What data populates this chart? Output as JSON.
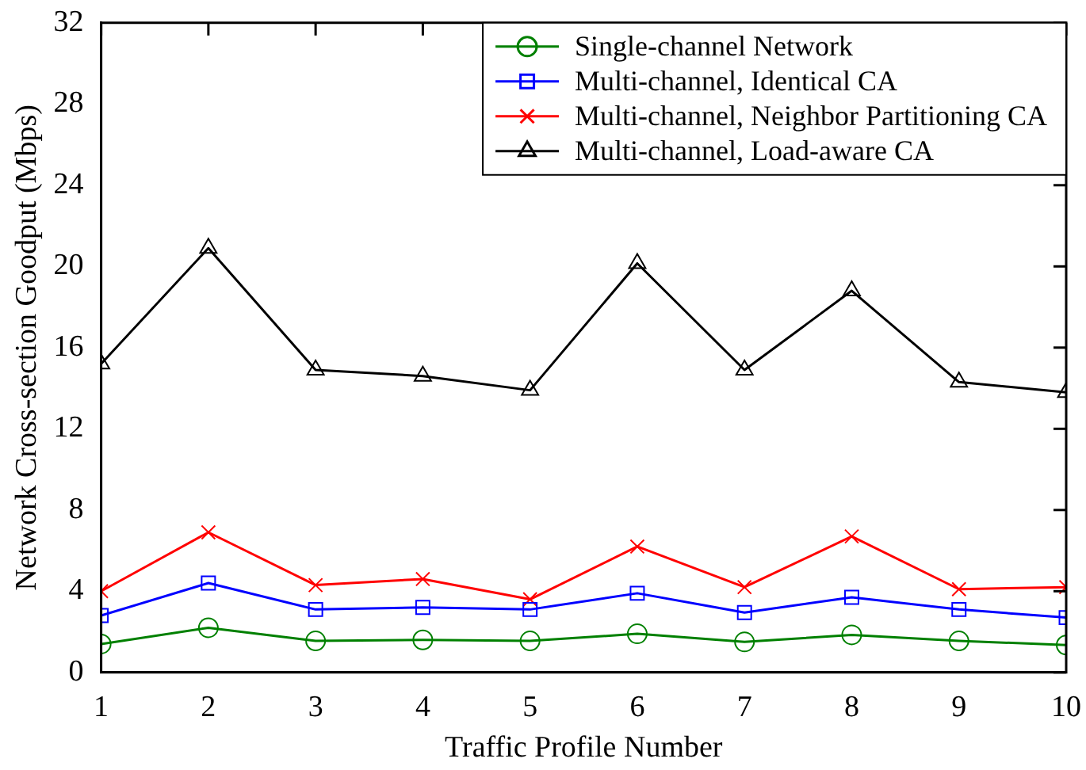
{
  "chart_data": {
    "type": "line",
    "xlabel": "Traffic Profile Number",
    "ylabel": "Network Cross-section Goodput (Mbps)",
    "x": [
      1,
      2,
      3,
      4,
      5,
      6,
      7,
      8,
      9,
      10
    ],
    "xlim": [
      1,
      10
    ],
    "xticks": [
      1,
      2,
      3,
      4,
      5,
      6,
      7,
      8,
      9,
      10
    ],
    "ylim": [
      0,
      32
    ],
    "yticks": [
      0,
      4,
      8,
      12,
      16,
      20,
      24,
      28,
      32
    ],
    "grid": false,
    "legend": "top right",
    "line_style": "solid",
    "series": [
      {
        "name": "Single-channel Network",
        "color": "#008000",
        "marker": "circle",
        "values": [
          1.4,
          2.2,
          1.55,
          1.6,
          1.55,
          1.9,
          1.5,
          1.85,
          1.55,
          1.35
        ]
      },
      {
        "name": "Multi-channel, Identical CA",
        "color": "#0000ff",
        "marker": "square",
        "values": [
          2.8,
          4.4,
          3.1,
          3.2,
          3.1,
          3.9,
          2.95,
          3.7,
          3.1,
          2.7
        ]
      },
      {
        "name": "Multi-channel, Neighbor Partitioning CA",
        "color": "#ff0000",
        "marker": "cross",
        "values": [
          4.0,
          6.9,
          4.3,
          4.6,
          3.6,
          6.2,
          4.2,
          6.7,
          4.1,
          4.2
        ]
      },
      {
        "name": "Multi-channel, Load-aware CA",
        "color": "#000000",
        "marker": "triangle",
        "values": [
          15.2,
          20.9,
          14.9,
          14.6,
          13.9,
          20.15,
          14.9,
          18.8,
          14.3,
          13.8
        ]
      }
    ]
  }
}
